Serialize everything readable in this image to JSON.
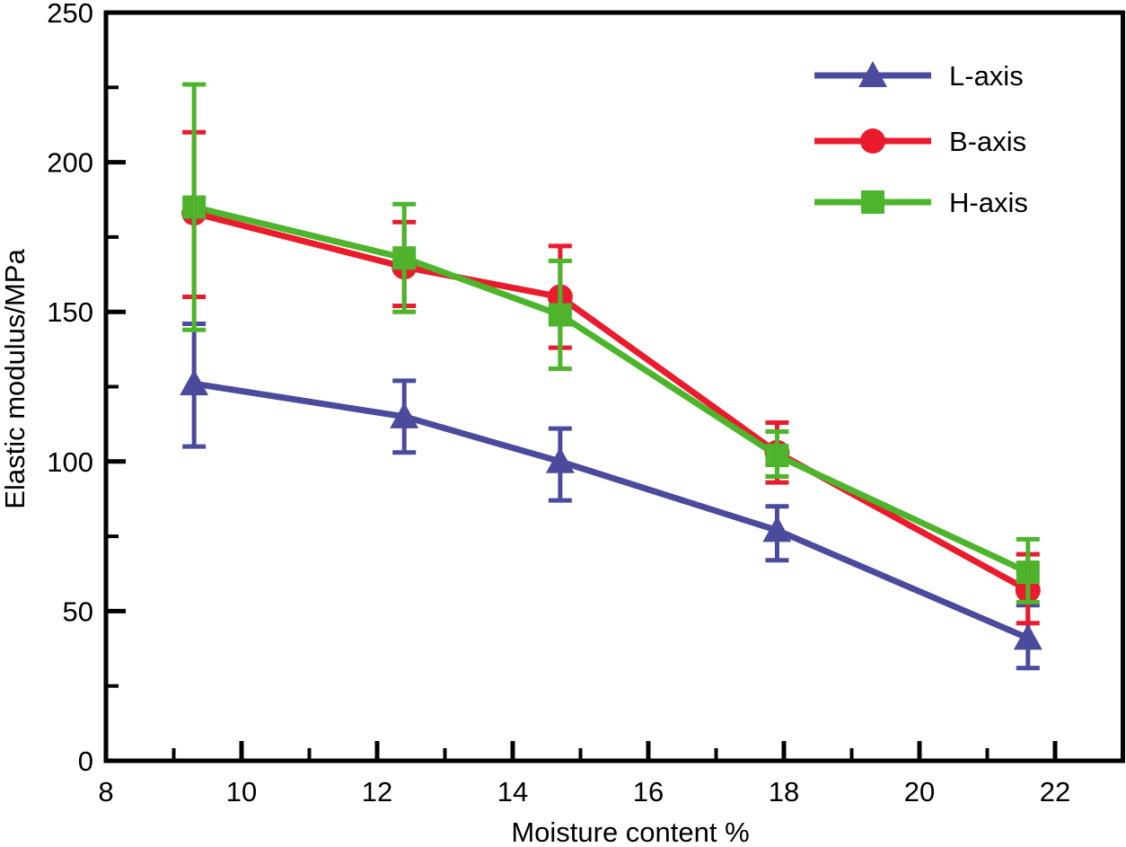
{
  "chart_data": {
    "type": "line",
    "title": "",
    "xlabel": "Moisture content %",
    "ylabel": "Elastic modulus/MPa",
    "xlim": [
      8,
      23
    ],
    "ylim": [
      0,
      250
    ],
    "x_major_ticks": [
      8,
      10,
      12,
      14,
      16,
      18,
      20,
      22
    ],
    "x_minor_ticks": [
      9,
      11,
      13,
      15,
      17,
      19,
      21
    ],
    "y_major_ticks": [
      0,
      50,
      100,
      150,
      200,
      250
    ],
    "y_minor_ticks": [
      25,
      75,
      125,
      175,
      225
    ],
    "grid": false,
    "legend_position": "upper-right-inside",
    "axis_color": "#000000",
    "background": "#ffffff",
    "x": [
      9.3,
      12.4,
      14.7,
      17.9,
      21.6
    ],
    "series": [
      {
        "name": "L-axis",
        "marker": "triangle",
        "color": "#4b4a9d",
        "values": [
          126,
          115,
          100,
          77,
          41
        ],
        "err_low": [
          105,
          103,
          87,
          67,
          31
        ],
        "err_high": [
          146,
          127,
          111,
          85,
          52
        ]
      },
      {
        "name": "B-axis",
        "marker": "circle",
        "color": "#ea1b2d",
        "values": [
          183,
          165,
          155,
          103,
          57
        ],
        "err_low": [
          155,
          152,
          138,
          93,
          46
        ],
        "err_high": [
          210,
          180,
          172,
          113,
          69
        ]
      },
      {
        "name": "H-axis",
        "marker": "square",
        "color": "#4db52c",
        "values": [
          185,
          168,
          149,
          102,
          63
        ],
        "err_low": [
          144,
          150,
          131,
          95,
          53
        ],
        "err_high": [
          226,
          186,
          167,
          110,
          74
        ]
      }
    ]
  }
}
